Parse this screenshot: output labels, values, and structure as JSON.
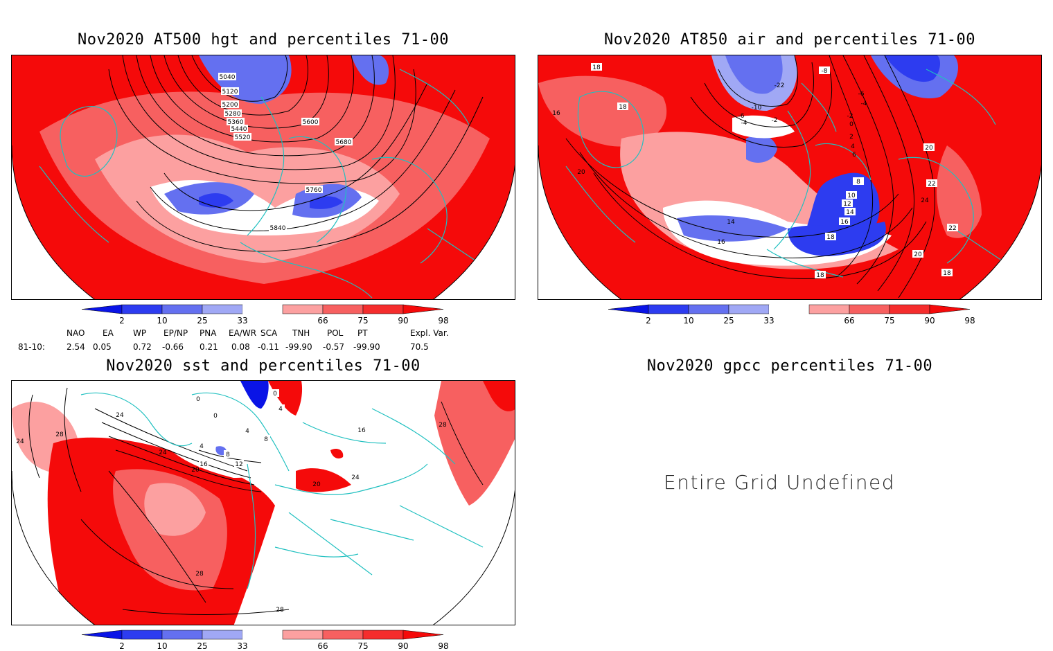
{
  "panels": {
    "hgt": {
      "title": "Nov2020 AT500 hgt and percentiles 71-00",
      "contour_labels": [
        "5040",
        "5120",
        "5200",
        "5280",
        "5360",
        "5440",
        "5520",
        "5600",
        "5680",
        "5760",
        "5840"
      ]
    },
    "air": {
      "title": "Nov2020 AT850 air and percentiles 71-00",
      "contour_labels": [
        "18",
        "18",
        "16",
        "20",
        "-8",
        "-6",
        "-4",
        "-2",
        "0",
        "2",
        "4",
        "6",
        "8",
        "10",
        "12",
        "14",
        "16",
        "18",
        "20",
        "22",
        "24",
        "22",
        "20",
        "18",
        "16",
        "14",
        "-22",
        "-10",
        "-2",
        "-4",
        "-6",
        "18"
      ]
    },
    "sst": {
      "title": "Nov2020 sst and percentiles 71-00",
      "contour_labels": [
        "24",
        "28",
        "24",
        "20",
        "16",
        "12",
        "8",
        "4",
        "4",
        "8",
        "4",
        "0",
        "0",
        "0",
        "24",
        "16",
        "20",
        "24",
        "28",
        "28",
        "28"
      ]
    },
    "gpcc": {
      "title": "Nov2020 gpcc percentiles 71-00",
      "message": "Entire Grid Undefined"
    }
  },
  "colorbar": {
    "ticks": [
      "2",
      "10",
      "25",
      "33",
      "66",
      "75",
      "90",
      "98"
    ],
    "colors": [
      "#0a14e6",
      "#2d3cf0",
      "#6470f0",
      "#a0a8f5",
      "#ffffff",
      "#fca0a0",
      "#f76060",
      "#f52d2d",
      "#f50a0a"
    ]
  },
  "teleconnection": {
    "headers": [
      "NAO",
      "EA",
      "WP",
      "EP/NP",
      "PNA",
      "EA/WR",
      "SCA",
      "TNH",
      "POL",
      "PT",
      "Expl. Var."
    ],
    "row_label": "81-10:",
    "values": [
      "2.54",
      "0.05",
      "0.72",
      "-0.66",
      "0.21",
      "0.08",
      "-0.11",
      "-99.90",
      "-0.57",
      "-99.90",
      "70.5"
    ]
  }
}
